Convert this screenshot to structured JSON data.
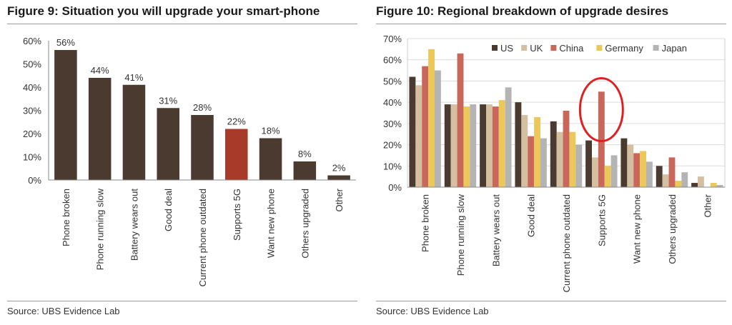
{
  "figure9": {
    "title": "Figure 9: Situation you will upgrade your smart-phone",
    "source": "Source:  UBS Evidence Lab"
  },
  "figure10": {
    "title": "Figure 10: Regional breakdown of upgrade desires",
    "source": "Source:  UBS Evidence Lab"
  },
  "chart_data": [
    {
      "type": "bar",
      "title": "Figure 9: Situation you will upgrade your smart-phone",
      "categories": [
        "Phone broken",
        "Phone running slow",
        "Battery wears out",
        "Good deal",
        "Current phone outdated",
        "Supports 5G",
        "Want new phone",
        "Others upgraded",
        "Other"
      ],
      "values": [
        56,
        44,
        41,
        31,
        28,
        22,
        18,
        8,
        2
      ],
      "data_labels": [
        "56%",
        "44%",
        "41%",
        "31%",
        "28%",
        "22%",
        "18%",
        "8%",
        "2%"
      ],
      "ylim": [
        0,
        60
      ],
      "yticks": [
        "0%",
        "10%",
        "20%",
        "30%",
        "40%",
        "50%",
        "60%"
      ],
      "xlabel": "",
      "ylabel": "",
      "grid": false,
      "colors": {
        "default": "#4b3a2f",
        "highlight": "#a83a2a"
      },
      "highlight_category": "Supports 5G"
    },
    {
      "type": "bar",
      "title": "Figure 10: Regional breakdown of upgrade desires",
      "categories": [
        "Phone broken",
        "Phone running slow",
        "Battery wears out",
        "Good deal",
        "Current phone outdated",
        "Supports 5G",
        "Want new phone",
        "Others upgraded",
        "Other"
      ],
      "series": [
        {
          "name": "US",
          "color": "#4b3a2f",
          "values": [
            52,
            39,
            39,
            40,
            31,
            22,
            23,
            10,
            2
          ]
        },
        {
          "name": "UK",
          "color": "#d4bfa0",
          "values": [
            48,
            39,
            39,
            34,
            26,
            14,
            20,
            6,
            5
          ]
        },
        {
          "name": "China",
          "color": "#c9675a",
          "values": [
            57,
            63,
            38,
            24,
            36,
            45,
            16,
            14,
            0
          ]
        },
        {
          "name": "Germany",
          "color": "#ecc85a",
          "values": [
            65,
            38,
            41,
            33,
            26,
            10,
            17,
            3,
            2
          ]
        },
        {
          "name": "Japan",
          "color": "#b4b4b4",
          "values": [
            55,
            39,
            47,
            23,
            20,
            15,
            12,
            7,
            1
          ]
        }
      ],
      "ylim": [
        0,
        70
      ],
      "yticks": [
        "0%",
        "10%",
        "20%",
        "30%",
        "40%",
        "50%",
        "60%",
        "70%"
      ],
      "xlabel": "",
      "ylabel": "",
      "grid": true,
      "legend_position": "top",
      "annotation": {
        "shape": "ellipse",
        "color": "#e02020",
        "category": "Supports 5G"
      }
    }
  ]
}
